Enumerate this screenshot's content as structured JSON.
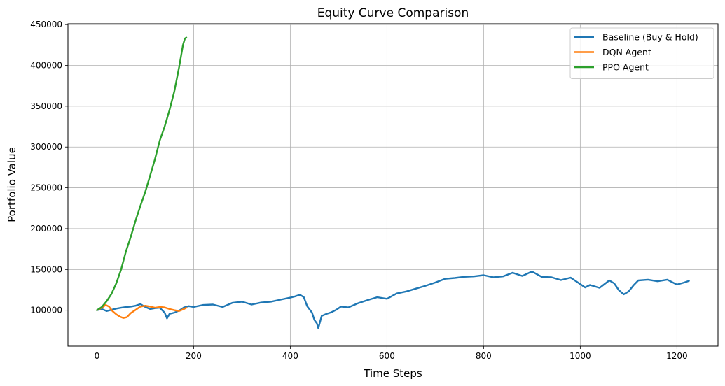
{
  "chart_data": {
    "type": "line",
    "title": "Equity Curve Comparison",
    "xlabel": "Time Steps",
    "ylabel": "Portfolio Value",
    "xlim": [
      -60,
      1285
    ],
    "ylim": [
      56000,
      451000
    ],
    "xticks": [
      0,
      200,
      400,
      600,
      800,
      1000,
      1200
    ],
    "yticks": [
      100000,
      150000,
      200000,
      250000,
      300000,
      350000,
      400000,
      450000
    ],
    "grid": true,
    "legend_position": "top-right",
    "series": [
      {
        "name": "Baseline (Buy & Hold)",
        "color": "#1f77b4",
        "points": [
          [
            0,
            100000
          ],
          [
            10,
            101500
          ],
          [
            20,
            99000
          ],
          [
            30,
            100500
          ],
          [
            40,
            102000
          ],
          [
            50,
            103000
          ],
          [
            60,
            104000
          ],
          [
            70,
            104500
          ],
          [
            80,
            105500
          ],
          [
            90,
            107500
          ],
          [
            100,
            104000
          ],
          [
            110,
            101500
          ],
          [
            120,
            102500
          ],
          [
            130,
            103000
          ],
          [
            140,
            97000
          ],
          [
            145,
            90000
          ],
          [
            150,
            95500
          ],
          [
            160,
            97000
          ],
          [
            170,
            99500
          ],
          [
            180,
            103500
          ],
          [
            190,
            105000
          ],
          [
            200,
            104000
          ],
          [
            220,
            106500
          ],
          [
            240,
            107000
          ],
          [
            260,
            104000
          ],
          [
            280,
            109000
          ],
          [
            300,
            110500
          ],
          [
            320,
            107000
          ],
          [
            340,
            109500
          ],
          [
            360,
            110500
          ],
          [
            380,
            113000
          ],
          [
            400,
            115500
          ],
          [
            410,
            117000
          ],
          [
            420,
            119000
          ],
          [
            428,
            116000
          ],
          [
            435,
            105000
          ],
          [
            445,
            97000
          ],
          [
            450,
            88000
          ],
          [
            455,
            84000
          ],
          [
            458,
            78000
          ],
          [
            465,
            93000
          ],
          [
            475,
            95500
          ],
          [
            485,
            97500
          ],
          [
            495,
            100500
          ],
          [
            505,
            104500
          ],
          [
            520,
            103500
          ],
          [
            540,
            108500
          ],
          [
            560,
            112500
          ],
          [
            580,
            116000
          ],
          [
            600,
            114000
          ],
          [
            620,
            120500
          ],
          [
            640,
            123000
          ],
          [
            660,
            126500
          ],
          [
            680,
            130000
          ],
          [
            700,
            134000
          ],
          [
            720,
            138500
          ],
          [
            740,
            139500
          ],
          [
            760,
            141000
          ],
          [
            780,
            141500
          ],
          [
            800,
            143000
          ],
          [
            820,
            140500
          ],
          [
            840,
            141500
          ],
          [
            860,
            146000
          ],
          [
            880,
            142000
          ],
          [
            900,
            147500
          ],
          [
            920,
            141000
          ],
          [
            940,
            140500
          ],
          [
            960,
            137000
          ],
          [
            980,
            140000
          ],
          [
            1000,
            132000
          ],
          [
            1010,
            128000
          ],
          [
            1020,
            131000
          ],
          [
            1040,
            127500
          ],
          [
            1060,
            136500
          ],
          [
            1070,
            133000
          ],
          [
            1080,
            124500
          ],
          [
            1090,
            119500
          ],
          [
            1100,
            123000
          ],
          [
            1110,
            130500
          ],
          [
            1120,
            136500
          ],
          [
            1140,
            137500
          ],
          [
            1160,
            135500
          ],
          [
            1180,
            137500
          ],
          [
            1200,
            131500
          ],
          [
            1215,
            134000
          ],
          [
            1225,
            136000
          ]
        ]
      },
      {
        "name": "DQN Agent",
        "color": "#ff7f0e",
        "points": [
          [
            0,
            100000
          ],
          [
            10,
            103000
          ],
          [
            18,
            106500
          ],
          [
            25,
            104500
          ],
          [
            32,
            99000
          ],
          [
            40,
            95000
          ],
          [
            48,
            92000
          ],
          [
            55,
            90500
          ],
          [
            62,
            91500
          ],
          [
            70,
            96500
          ],
          [
            80,
            100500
          ],
          [
            90,
            104500
          ],
          [
            100,
            105500
          ],
          [
            110,
            104500
          ],
          [
            120,
            103000
          ],
          [
            130,
            104000
          ],
          [
            140,
            103500
          ],
          [
            150,
            101500
          ],
          [
            160,
            100000
          ],
          [
            170,
            99000
          ],
          [
            180,
            101500
          ],
          [
            185,
            103000
          ]
        ]
      },
      {
        "name": "PPO Agent",
        "color": "#2ca02c",
        "points": [
          [
            0,
            100000
          ],
          [
            10,
            104000
          ],
          [
            20,
            111000
          ],
          [
            30,
            120000
          ],
          [
            40,
            133000
          ],
          [
            50,
            150000
          ],
          [
            60,
            172000
          ],
          [
            70,
            190000
          ],
          [
            80,
            210000
          ],
          [
            90,
            228000
          ],
          [
            100,
            245000
          ],
          [
            110,
            265000
          ],
          [
            120,
            285000
          ],
          [
            130,
            308000
          ],
          [
            140,
            325000
          ],
          [
            150,
            345000
          ],
          [
            160,
            368000
          ],
          [
            170,
            398000
          ],
          [
            178,
            425000
          ],
          [
            182,
            433000
          ],
          [
            185,
            434000
          ]
        ]
      }
    ]
  }
}
